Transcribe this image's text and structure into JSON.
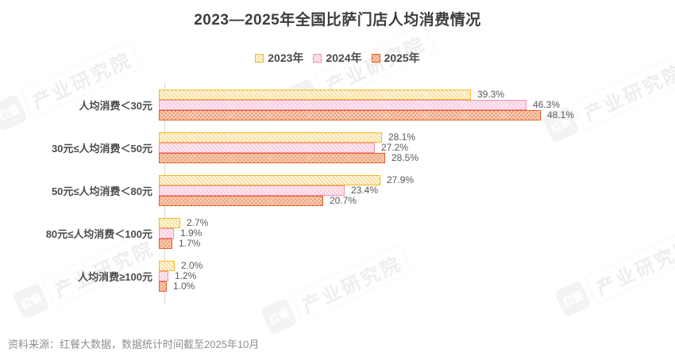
{
  "chart_data": {
    "type": "bar",
    "orientation": "horizontal",
    "title": "2023—2025年全国比萨门店人均消费情况",
    "categories": [
      "人均消费＜30元",
      "30元≤人均消费＜50元",
      "50元≤人均消费＜80元",
      "80元≤人均消费＜100元",
      "人均消费≥100元"
    ],
    "series": [
      {
        "name": "2023年",
        "pattern": "diagonal",
        "color": {
          "border": "#f5b91e",
          "hatch": "#f4d387",
          "bg": "#fdf5da"
        },
        "values": [
          39.3,
          28.1,
          27.9,
          2.7,
          2.0
        ]
      },
      {
        "name": "2024年",
        "pattern": "diagonal",
        "color": {
          "border": "#f78fb5",
          "hatch": "#f8c0d6",
          "bg": "#fce7f0"
        },
        "values": [
          46.3,
          27.2,
          23.4,
          1.9,
          1.2
        ]
      },
      {
        "name": "2025年",
        "pattern": "crosshatch",
        "color": {
          "border": "#e85c1e",
          "hatch": "#eda077",
          "bg": "#f7d8c4"
        },
        "values": [
          48.1,
          28.5,
          20.7,
          1.7,
          1.0
        ]
      }
    ],
    "value_suffix": "%",
    "xlim": [
      0,
      50
    ],
    "legend_position": "top",
    "grid": false
  },
  "watermark": {
    "logo": "红餐",
    "label": "产业研究院"
  },
  "footer": {
    "source": "资料来源：红餐大数据，数据统计时间截至2025年10月"
  },
  "colors": {
    "title": "#3d3d3d",
    "category_label": "#4d4d4d",
    "value_label": "#595959",
    "axis_line": "#d9d9d9",
    "footer_text": "#8f8f8f"
  }
}
